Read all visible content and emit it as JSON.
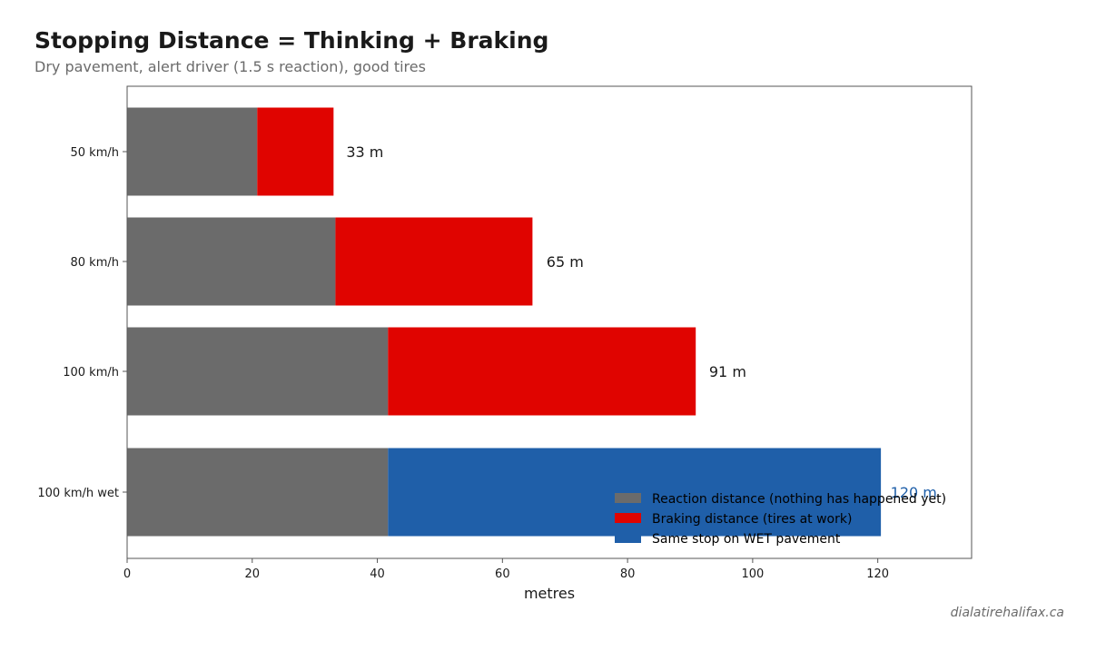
{
  "chart_data": {
    "type": "bar",
    "orientation": "horizontal",
    "stacked": true,
    "title": "Stopping Distance = Thinking + Braking",
    "subtitle": "Dry pavement, alert driver (1.5 s reaction), good tires",
    "xlabel": "metres",
    "ylabel": "",
    "xlim": [
      0,
      135
    ],
    "xticks": [
      0,
      20,
      40,
      60,
      80,
      100,
      120
    ],
    "categories": [
      "50 km/h",
      "80 km/h",
      "100 km/h",
      "100 km/h wet"
    ],
    "series": [
      {
        "name": "Reaction distance (nothing has happened yet)",
        "values": [
          20.8,
          33.3,
          41.7,
          41.7
        ],
        "color": "#6b6b6b"
      },
      {
        "name": "Braking distance (tires at work)",
        "values": [
          12.2,
          31.5,
          49.2,
          null
        ],
        "color": "#e00400"
      },
      {
        "name": "Same stop on WET pavement",
        "values": [
          null,
          null,
          null,
          78.8
        ],
        "color": "#1f5fa9"
      }
    ],
    "totals": [
      33,
      65,
      91,
      120
    ],
    "total_labels": [
      "33 m",
      "65 m",
      "91 m",
      "120 m"
    ],
    "total_label_colors": [
      "#1a1a1a",
      "#1a1a1a",
      "#1a1a1a",
      "#1f5fa9"
    ],
    "legend_position": "lower-right",
    "grid": false
  },
  "credit": "dialatirehalifax.ca"
}
